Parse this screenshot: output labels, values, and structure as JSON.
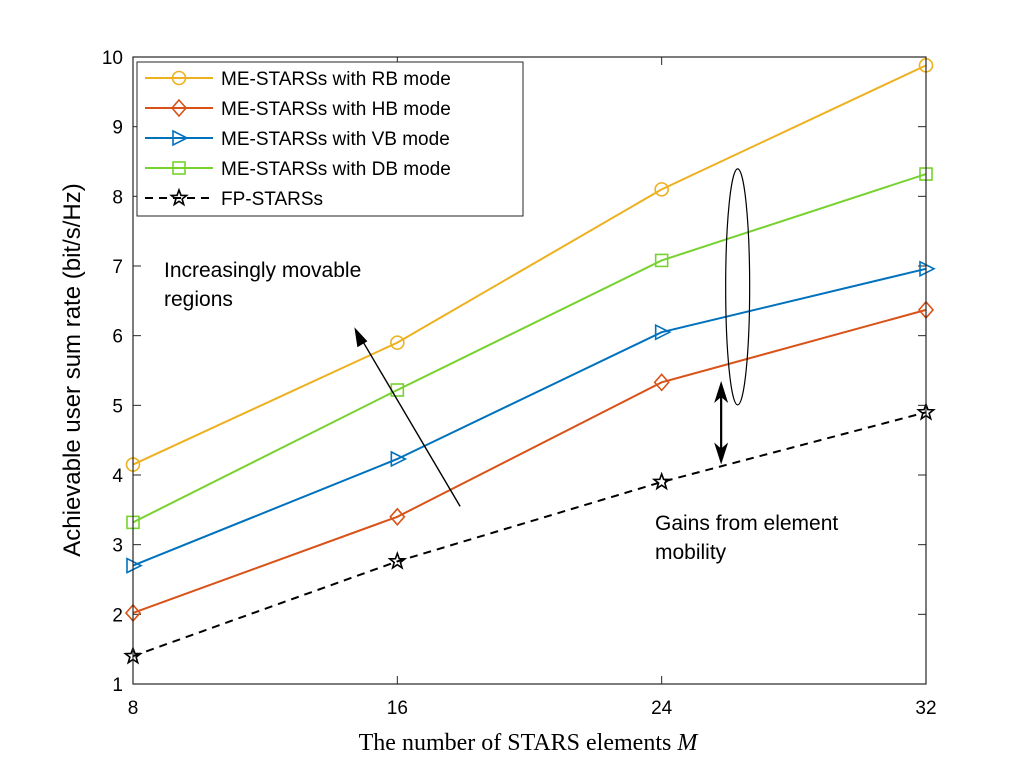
{
  "chart_data": {
    "type": "line",
    "title": "",
    "xlabel": "The number of STARS elements",
    "xlabel_var": "M",
    "ylabel": "Achievable user sum rate (bit/s/Hz)",
    "x": [
      8,
      16,
      24,
      32
    ],
    "xlim": [
      8,
      32
    ],
    "ylim": [
      1,
      10
    ],
    "xticks": [
      "8",
      "16",
      "24",
      "32"
    ],
    "yticks": [
      "1",
      "2",
      "3",
      "4",
      "5",
      "6",
      "7",
      "8",
      "9",
      "10"
    ],
    "grid": false,
    "legend_position": "top-left",
    "series": [
      {
        "name": "ME-STARSs with RB mode",
        "values": [
          4.15,
          5.9,
          8.1,
          9.88
        ],
        "color": "#EDB120",
        "marker": "circle",
        "dash": "solid"
      },
      {
        "name": "ME-STARSs with HB mode",
        "values": [
          2.02,
          3.4,
          5.33,
          6.37
        ],
        "color": "#D95319",
        "marker": "diamond",
        "dash": "solid"
      },
      {
        "name": "ME-STARSs with VB mode",
        "values": [
          2.7,
          4.23,
          6.05,
          6.96
        ],
        "color": "#0072BD",
        "marker": "triangle-right",
        "dash": "solid"
      },
      {
        "name": "ME-STARSs with DB mode",
        "values": [
          3.32,
          5.22,
          7.08,
          8.32
        ],
        "color": "#77D22F",
        "marker": "square",
        "dash": "solid"
      },
      {
        "name": "FP-STARSs",
        "values": [
          1.4,
          2.76,
          3.9,
          4.9
        ],
        "color": "#000000",
        "marker": "star",
        "dash": "dashed"
      }
    ],
    "annotations": [
      {
        "text_lines": [
          "Increasingly movable",
          "regions"
        ]
      },
      {
        "text_lines": [
          "Gains from element",
          "mobility"
        ]
      }
    ]
  }
}
